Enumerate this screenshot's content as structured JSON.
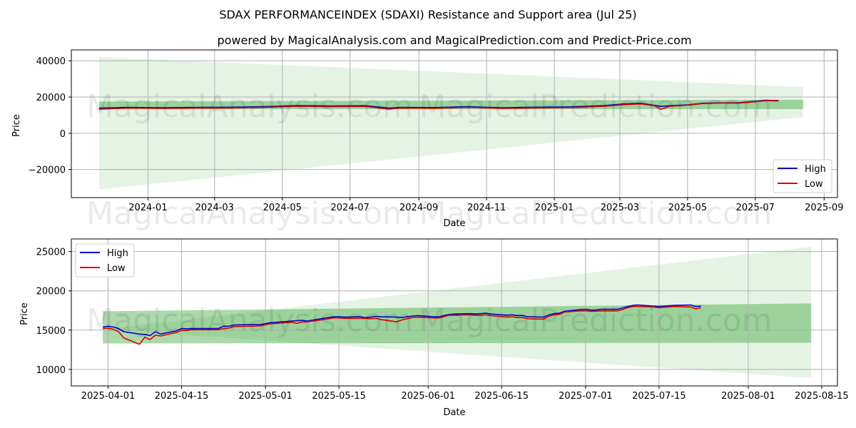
{
  "figure": {
    "title": "SDAX PERFORMANCEINDEX (SDAXI) Resistance and Support area (Jul 25)",
    "subtitle": "powered by MagicalAnalysis.com and MagicalPrediction.com and Predict-Price.com",
    "watermark_left": "MagicalAnalysis.com",
    "watermark_right": "MagicalPrediction.com"
  },
  "colors": {
    "high": "#0000cc",
    "low": "#dd0000",
    "band": "#2ca02c"
  },
  "chart_data": [
    {
      "type": "line",
      "xlabel": "Date",
      "ylabel": "Price",
      "xlim": [
        "2023-10-24",
        "2025-09-13"
      ],
      "ylim": [
        -35500,
        46000
      ],
      "x_ticks": [
        "2024-01",
        "2024-03",
        "2024-05",
        "2024-07",
        "2024-09",
        "2024-11",
        "2025-01",
        "2025-03",
        "2025-05",
        "2025-07",
        "2025-09"
      ],
      "y_ticks": [
        -20000,
        0,
        20000,
        40000
      ],
      "y_tick_labels": [
        "−20000",
        "0",
        "20000",
        "40000"
      ],
      "grid": true,
      "legend": "lower right",
      "legend_entries": [
        "High",
        "Low"
      ],
      "regions": [
        {
          "x": [
            "2023-11-18",
            "2025-08-13"
          ],
          "upper": [
            42000,
            25500
          ],
          "lower": [
            -31000,
            9000
          ],
          "alpha": 0.12
        },
        {
          "x": [
            "2023-11-18",
            "2025-08-13"
          ],
          "upper": [
            17500,
            18500
          ],
          "lower": [
            13300,
            13300
          ],
          "alpha": 0.4
        }
      ],
      "series": [
        {
          "name": "High",
          "x": [
            "2023-11-18",
            "2023-12-15",
            "2024-01-15",
            "2024-02-15",
            "2024-03-15",
            "2024-04-15",
            "2024-05-15",
            "2024-06-15",
            "2024-07-15",
            "2024-08-05",
            "2024-08-15",
            "2024-09-15",
            "2024-10-15",
            "2024-11-15",
            "2024-12-15",
            "2025-01-15",
            "2025-02-15",
            "2025-03-05",
            "2025-03-20",
            "2025-04-01",
            "2025-04-07",
            "2025-04-15",
            "2025-05-01",
            "2025-05-15",
            "2025-06-01",
            "2025-06-15",
            "2025-07-01",
            "2025-07-10",
            "2025-07-22"
          ],
          "y": [
            13900,
            14300,
            14100,
            14300,
            14400,
            14700,
            15300,
            15100,
            15200,
            13900,
            14300,
            14200,
            14700,
            14100,
            14400,
            14600,
            15300,
            16200,
            16600,
            15400,
            14800,
            15200,
            15700,
            16600,
            16800,
            16800,
            17600,
            18200,
            18000
          ]
        },
        {
          "name": "Low",
          "x": [
            "2023-11-18",
            "2023-12-15",
            "2024-01-15",
            "2024-02-15",
            "2024-03-15",
            "2024-04-15",
            "2024-05-15",
            "2024-06-15",
            "2024-07-15",
            "2024-08-05",
            "2024-08-15",
            "2024-09-15",
            "2024-10-15",
            "2024-11-15",
            "2024-12-15",
            "2025-01-15",
            "2025-02-15",
            "2025-03-05",
            "2025-03-20",
            "2025-04-01",
            "2025-04-07",
            "2025-04-15",
            "2025-05-01",
            "2025-05-15",
            "2025-06-01",
            "2025-06-15",
            "2025-07-01",
            "2025-07-10",
            "2025-07-22"
          ],
          "y": [
            13300,
            13900,
            13700,
            13900,
            14000,
            14300,
            14900,
            14700,
            14800,
            13300,
            13900,
            13800,
            14300,
            13700,
            14000,
            14200,
            14900,
            15800,
            16200,
            15200,
            13200,
            14900,
            15500,
            16400,
            16700,
            16600,
            17400,
            18000,
            17800
          ]
        }
      ]
    },
    {
      "type": "line",
      "xlabel": "Date",
      "ylabel": "Price",
      "xlim": [
        "2025-03-25",
        "2025-08-18"
      ],
      "ylim": [
        7900,
        26600
      ],
      "x_ticks": [
        "2025-04-01",
        "2025-04-15",
        "2025-05-01",
        "2025-05-15",
        "2025-06-01",
        "2025-06-15",
        "2025-07-01",
        "2025-07-15",
        "2025-08-01",
        "2025-08-15"
      ],
      "y_ticks": [
        10000,
        15000,
        20000,
        25000
      ],
      "grid": true,
      "legend": "upper left",
      "legend_entries": [
        "High",
        "Low"
      ],
      "regions": [
        {
          "x": [
            "2025-03-31",
            "2025-08-13"
          ],
          "upper": [
            15100,
            25600
          ],
          "lower": [
            15100,
            8900
          ],
          "alpha": 0.12
        },
        {
          "x": [
            "2025-03-31",
            "2025-08-13"
          ],
          "upper": [
            17400,
            18400
          ],
          "lower": [
            13300,
            13400
          ],
          "alpha": 0.4
        }
      ],
      "series": [
        {
          "name": "High",
          "x": [
            "2025-03-31",
            "2025-04-01",
            "2025-04-02",
            "2025-04-03",
            "2025-04-04",
            "2025-04-07",
            "2025-04-08",
            "2025-04-09",
            "2025-04-10",
            "2025-04-11",
            "2025-04-14",
            "2025-04-15",
            "2025-04-16",
            "2025-04-17",
            "2025-04-22",
            "2025-04-23",
            "2025-04-24",
            "2025-04-25",
            "2025-04-28",
            "2025-04-29",
            "2025-04-30",
            "2025-05-02",
            "2025-05-05",
            "2025-05-06",
            "2025-05-07",
            "2025-05-08",
            "2025-05-09",
            "2025-05-12",
            "2025-05-13",
            "2025-05-14",
            "2025-05-15",
            "2025-05-16",
            "2025-05-19",
            "2025-05-20",
            "2025-05-21",
            "2025-05-22",
            "2025-05-23",
            "2025-05-26",
            "2025-05-27",
            "2025-05-28",
            "2025-05-29",
            "2025-05-30",
            "2025-06-02",
            "2025-06-03",
            "2025-06-04",
            "2025-06-05",
            "2025-06-06",
            "2025-06-09",
            "2025-06-10",
            "2025-06-11",
            "2025-06-12",
            "2025-06-13",
            "2025-06-16",
            "2025-06-17",
            "2025-06-18",
            "2025-06-19",
            "2025-06-20",
            "2025-06-23",
            "2025-06-24",
            "2025-06-25",
            "2025-06-26",
            "2025-06-27",
            "2025-06-30",
            "2025-07-01",
            "2025-07-02",
            "2025-07-03",
            "2025-07-04",
            "2025-07-07",
            "2025-07-08",
            "2025-07-09",
            "2025-07-10",
            "2025-07-11",
            "2025-07-14",
            "2025-07-15",
            "2025-07-16",
            "2025-07-17",
            "2025-07-18",
            "2025-07-21",
            "2025-07-22",
            "2025-07-23"
          ],
          "y": [
            15400,
            15500,
            15400,
            15200,
            14800,
            14500,
            14450,
            14300,
            14800,
            14500,
            14900,
            15200,
            15150,
            15200,
            15200,
            15500,
            15500,
            15650,
            15700,
            15700,
            15700,
            15950,
            16100,
            16150,
            16200,
            16250,
            16150,
            16500,
            16600,
            16700,
            16700,
            16650,
            16700,
            16600,
            16650,
            16750,
            16700,
            16650,
            16600,
            16700,
            16800,
            16850,
            16700,
            16700,
            16850,
            17000,
            17050,
            17100,
            17050,
            17100,
            17150,
            17050,
            16900,
            16950,
            16850,
            16850,
            16700,
            16650,
            16950,
            17100,
            17150,
            17400,
            17600,
            17650,
            17550,
            17550,
            17650,
            17650,
            17800,
            18000,
            18150,
            18200,
            18050,
            18000,
            18050,
            18100,
            18150,
            18200,
            18000,
            18050
          ]
        },
        {
          "name": "Low",
          "x": [
            "2025-03-31",
            "2025-04-01",
            "2025-04-02",
            "2025-04-03",
            "2025-04-04",
            "2025-04-07",
            "2025-04-08",
            "2025-04-09",
            "2025-04-10",
            "2025-04-11",
            "2025-04-14",
            "2025-04-15",
            "2025-04-16",
            "2025-04-17",
            "2025-04-22",
            "2025-04-23",
            "2025-04-24",
            "2025-04-25",
            "2025-04-28",
            "2025-04-29",
            "2025-04-30",
            "2025-05-02",
            "2025-05-05",
            "2025-05-06",
            "2025-05-07",
            "2025-05-08",
            "2025-05-09",
            "2025-05-12",
            "2025-05-13",
            "2025-05-14",
            "2025-05-15",
            "2025-05-16",
            "2025-05-19",
            "2025-05-20",
            "2025-05-21",
            "2025-05-22",
            "2025-05-23",
            "2025-05-26",
            "2025-05-27",
            "2025-05-28",
            "2025-05-29",
            "2025-05-30",
            "2025-06-02",
            "2025-06-03",
            "2025-06-04",
            "2025-06-05",
            "2025-06-06",
            "2025-06-09",
            "2025-06-10",
            "2025-06-11",
            "2025-06-12",
            "2025-06-13",
            "2025-06-16",
            "2025-06-17",
            "2025-06-18",
            "2025-06-19",
            "2025-06-20",
            "2025-06-23",
            "2025-06-24",
            "2025-06-25",
            "2025-06-26",
            "2025-06-27",
            "2025-06-30",
            "2025-07-01",
            "2025-07-02",
            "2025-07-03",
            "2025-07-04",
            "2025-07-07",
            "2025-07-08",
            "2025-07-09",
            "2025-07-10",
            "2025-07-11",
            "2025-07-14",
            "2025-07-15",
            "2025-07-16",
            "2025-07-17",
            "2025-07-18",
            "2025-07-21",
            "2025-07-22",
            "2025-07-23"
          ],
          "y": [
            15200,
            15250,
            15100,
            14800,
            14000,
            13200,
            14100,
            13800,
            14350,
            14250,
            14700,
            14950,
            14950,
            15050,
            15050,
            15200,
            15250,
            15450,
            15500,
            15500,
            15550,
            15800,
            15950,
            16000,
            15850,
            16050,
            16050,
            16350,
            16450,
            16550,
            16550,
            16500,
            16500,
            16500,
            16450,
            16500,
            16350,
            16050,
            16300,
            16450,
            16600,
            16650,
            16550,
            16550,
            16700,
            16900,
            16900,
            16950,
            16900,
            16900,
            16950,
            16850,
            16650,
            16700,
            16600,
            16600,
            16450,
            16400,
            16750,
            16950,
            17000,
            17300,
            17450,
            17450,
            17400,
            17400,
            17450,
            17450,
            17600,
            17850,
            18000,
            18000,
            17950,
            17850,
            17900,
            17950,
            18000,
            17950,
            17700,
            17850
          ]
        }
      ]
    }
  ]
}
